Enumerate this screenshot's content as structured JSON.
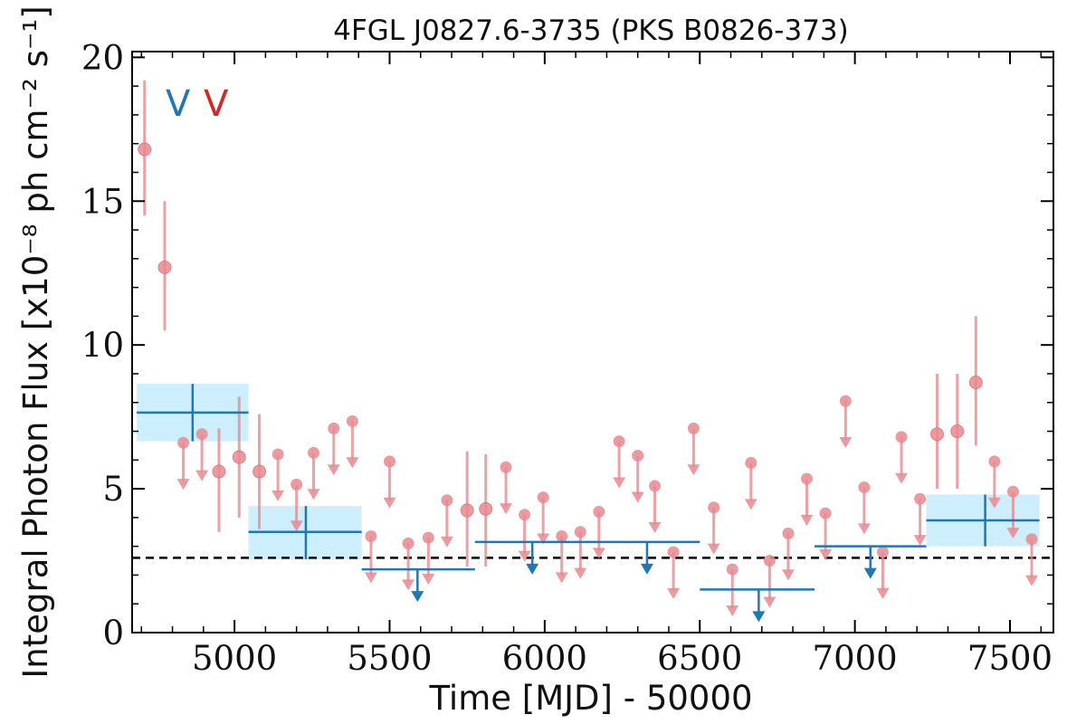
{
  "chart_data": {
    "type": "scatter",
    "title": "4FGL J0827.6-3735 (PKS B0826-373)",
    "xlabel": "Time [MJD] - 50000",
    "ylabel": "Integral Photon Flux [x10⁻⁸ ph cm⁻² s⁻¹]",
    "xlim": [
      4670,
      7640
    ],
    "ylim": [
      0,
      20.2
    ],
    "xticks": [
      5000,
      5500,
      6000,
      6500,
      7000,
      7500
    ],
    "xtick_labels": [
      "5000",
      "5500",
      "6000",
      "6500",
      "7000",
      "7500"
    ],
    "yticks": [
      0,
      5,
      10,
      15,
      20
    ],
    "ytick_labels": [
      "0",
      "5",
      "10",
      "15",
      "20"
    ],
    "legend_glyphs": [
      "V",
      "V"
    ],
    "reference_line": 2.6,
    "colors": {
      "fine": "#e88a8f",
      "coarse": "#1f77b4",
      "band": "#cdeefd",
      "reference": "#000000"
    },
    "fine_bins": {
      "detections": [
        {
          "x": 4710,
          "y": 16.8,
          "ylo": 14.5,
          "yhi": 19.2
        },
        {
          "x": 4775,
          "y": 12.7,
          "ylo": 10.5,
          "yhi": 15.0
        },
        {
          "x": 4950,
          "y": 5.6,
          "ylo": 3.5,
          "yhi": 7.1
        },
        {
          "x": 5015,
          "y": 6.1,
          "ylo": 4.0,
          "yhi": 8.2
        },
        {
          "x": 5080,
          "y": 5.6,
          "ylo": 3.6,
          "yhi": 7.6
        },
        {
          "x": 5750,
          "y": 4.25,
          "ylo": 2.3,
          "yhi": 6.3
        },
        {
          "x": 5810,
          "y": 4.3,
          "ylo": 2.3,
          "yhi": 6.2
        },
        {
          "x": 7265,
          "y": 6.9,
          "ylo": 5.0,
          "yhi": 9.0
        },
        {
          "x": 7330,
          "y": 7.0,
          "ylo": 5.0,
          "yhi": 9.0
        },
        {
          "x": 7390,
          "y": 8.7,
          "ylo": 6.5,
          "yhi": 11.0
        }
      ],
      "upper_limits": [
        {
          "x": 4835,
          "y": 6.6
        },
        {
          "x": 4895,
          "y": 6.9
        },
        {
          "x": 5140,
          "y": 6.2
        },
        {
          "x": 5200,
          "y": 5.15
        },
        {
          "x": 5255,
          "y": 6.25
        },
        {
          "x": 5320,
          "y": 7.1
        },
        {
          "x": 5380,
          "y": 7.35
        },
        {
          "x": 5440,
          "y": 3.35
        },
        {
          "x": 5500,
          "y": 5.95
        },
        {
          "x": 5560,
          "y": 3.1
        },
        {
          "x": 5625,
          "y": 3.3
        },
        {
          "x": 5685,
          "y": 4.6
        },
        {
          "x": 5875,
          "y": 5.75
        },
        {
          "x": 5935,
          "y": 4.1
        },
        {
          "x": 5995,
          "y": 4.7
        },
        {
          "x": 6055,
          "y": 3.35
        },
        {
          "x": 6115,
          "y": 3.5
        },
        {
          "x": 6175,
          "y": 4.2
        },
        {
          "x": 6240,
          "y": 6.65
        },
        {
          "x": 6300,
          "y": 6.15
        },
        {
          "x": 6355,
          "y": 5.1
        },
        {
          "x": 6415,
          "y": 2.8
        },
        {
          "x": 6480,
          "y": 7.1
        },
        {
          "x": 6545,
          "y": 4.35
        },
        {
          "x": 6605,
          "y": 2.2
        },
        {
          "x": 6665,
          "y": 5.9
        },
        {
          "x": 6725,
          "y": 2.5
        },
        {
          "x": 6785,
          "y": 3.45
        },
        {
          "x": 6845,
          "y": 5.35
        },
        {
          "x": 6905,
          "y": 4.15
        },
        {
          "x": 6970,
          "y": 8.05
        },
        {
          "x": 7030,
          "y": 5.05
        },
        {
          "x": 7090,
          "y": 2.8
        },
        {
          "x": 7150,
          "y": 6.8
        },
        {
          "x": 7210,
          "y": 4.65
        },
        {
          "x": 7450,
          "y": 5.95
        },
        {
          "x": 7510,
          "y": 4.9
        },
        {
          "x": 7570,
          "y": 3.25
        }
      ]
    },
    "coarse_bins": {
      "detections": [
        {
          "x0": 4685,
          "x1": 5045,
          "xc": 4865,
          "y": 7.65,
          "ylo": 6.65,
          "yhi": 8.65
        },
        {
          "x0": 5045,
          "x1": 5410,
          "xc": 5230,
          "y": 3.5,
          "ylo": 2.55,
          "yhi": 4.4
        },
        {
          "x0": 7230,
          "x1": 7595,
          "xc": 7420,
          "y": 3.9,
          "ylo": 3.0,
          "yhi": 4.8
        }
      ],
      "upper_limits": [
        {
          "x0": 5410,
          "x1": 5775,
          "xc": 5590,
          "y": 2.2
        },
        {
          "x0": 5775,
          "x1": 6500,
          "xc": 5960,
          "y": 3.15,
          "xc2": 6330
        },
        {
          "x0": 6500,
          "x1": 6870,
          "xc": 6690,
          "y": 1.5
        },
        {
          "x0": 6870,
          "x1": 7230,
          "xc": 7050,
          "y": 3.0
        }
      ]
    }
  }
}
